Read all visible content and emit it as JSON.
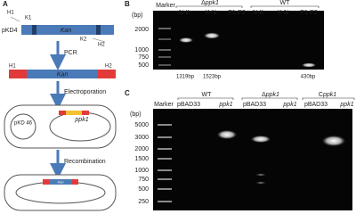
{
  "panel_a": {
    "label": "A",
    "plasmid": "pKD4",
    "primer_h1": "H1",
    "primer_k1": "K1",
    "primer_k2": "K2",
    "primer_h2": "H2",
    "gene": "Kan",
    "pcr_h1": "H1",
    "pcr_gene": "Kan",
    "pcr_h2": "H2",
    "steps": [
      "PCR",
      "Electroporation",
      "Recombination"
    ],
    "helper_plasmid": "pKD 46",
    "target": "ppk1",
    "final_gene": "Kan"
  },
  "panel_b": {
    "label": "B",
    "marker": "Marker",
    "unit": "(bp)",
    "ladder": [
      2000,
      1000,
      750,
      500
    ],
    "groups": [
      {
        "prefix": "Δ",
        "gene": "ppk1",
        "lanes": [
          "N-K",
          "K-N",
          "P1-P2"
        ]
      },
      {
        "name": "WT",
        "lanes": [
          "N-K",
          "K-N",
          "P1-P2"
        ]
      }
    ],
    "sizes": [
      "1319bp",
      "1523bp",
      "430bp"
    ]
  },
  "panel_c": {
    "label": "C",
    "marker": "Marker",
    "unit": "(bp)",
    "ladder": [
      5000,
      3000,
      2000,
      1500,
      1000,
      750,
      500,
      250
    ],
    "groups": [
      {
        "name": "WT",
        "lanes": [
          "pBAD33",
          "ppk1"
        ]
      },
      {
        "prefix": "Δ",
        "gene": "ppk1",
        "lanes": [
          "pBAD33",
          "ppk1"
        ]
      },
      {
        "prefix": "C",
        "gene": "ppk1",
        "lanes": [
          "pBAD33",
          "ppk1"
        ]
      }
    ]
  }
}
